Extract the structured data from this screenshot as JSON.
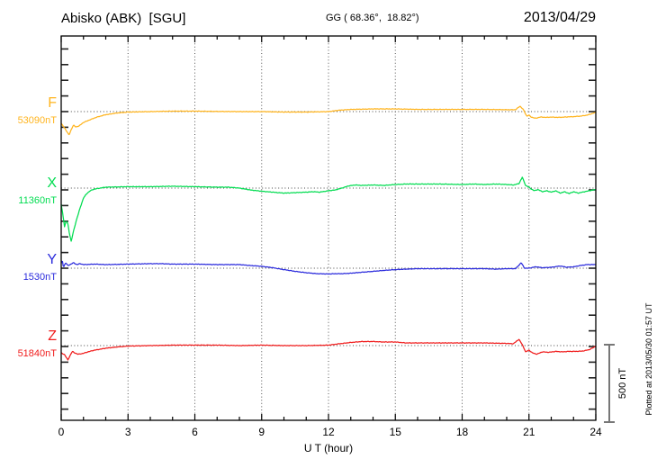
{
  "header": {
    "station_title": "Abisko (ABK)  [SGU]",
    "coords": "GG ( 68.36°,  18.82°)",
    "date": "2013/04/29"
  },
  "right_side": {
    "scale_bar_label": "500 nT",
    "plotted_at": "Plotted at 2013/05/30 01:57 UT"
  },
  "chart_data": {
    "type": "line",
    "title": "Abisko (ABK)  [SGU]",
    "xlabel": "U T (hour)",
    "x_range": [
      0,
      24
    ],
    "x_major_ticks": [
      0,
      3,
      6,
      9,
      12,
      15,
      18,
      21,
      24
    ],
    "x_minor_tick_step_hours": 1,
    "grid_hours": [
      3,
      6,
      9,
      12,
      15,
      18,
      21
    ],
    "grid_style": "dotted",
    "scale_bar_nT": 500,
    "y_minor_tick_nT": 100,
    "series": [
      {
        "name": "F",
        "baseline_label": "53090nT",
        "baseline_nT": 53090,
        "color": "#FFB41E",
        "points_hour_offset_nT": [
          [
            0,
            -75
          ],
          [
            0.2,
            -115
          ],
          [
            0.35,
            -150
          ],
          [
            0.45,
            -115
          ],
          [
            0.55,
            -86
          ],
          [
            0.65,
            -98
          ],
          [
            0.8,
            -92
          ],
          [
            1,
            -69
          ],
          [
            1.3,
            -52
          ],
          [
            1.6,
            -35
          ],
          [
            2,
            -20
          ],
          [
            2.5,
            -9
          ],
          [
            3,
            -3
          ],
          [
            4,
            0
          ],
          [
            5,
            3
          ],
          [
            6,
            3
          ],
          [
            7,
            1
          ],
          [
            8,
            0
          ],
          [
            9,
            0
          ],
          [
            10,
            -3
          ],
          [
            11,
            -3
          ],
          [
            12,
            0
          ],
          [
            12.5,
            9
          ],
          [
            13,
            14
          ],
          [
            14,
            17
          ],
          [
            15,
            17
          ],
          [
            16,
            14
          ],
          [
            17,
            14
          ],
          [
            18,
            14
          ],
          [
            19,
            14
          ],
          [
            20,
            12
          ],
          [
            20.4,
            12
          ],
          [
            20.6,
            35
          ],
          [
            20.75,
            12
          ],
          [
            20.9,
            -29
          ],
          [
            21,
            -23
          ],
          [
            21.1,
            -35
          ],
          [
            21.3,
            -43
          ],
          [
            21.5,
            -35
          ],
          [
            21.8,
            -37
          ],
          [
            22,
            -35
          ],
          [
            22.3,
            -37
          ],
          [
            22.6,
            -35
          ],
          [
            23,
            -32
          ],
          [
            23.3,
            -29
          ],
          [
            23.6,
            -23
          ],
          [
            23.8,
            -14
          ],
          [
            24,
            -6
          ]
        ]
      },
      {
        "name": "X",
        "baseline_label": "11360nT",
        "baseline_nT": 11360,
        "color": "#00DC50",
        "points_hour_offset_nT": [
          [
            0,
            -104
          ],
          [
            0.08,
            -173
          ],
          [
            0.15,
            -247
          ],
          [
            0.22,
            -207
          ],
          [
            0.3,
            -230
          ],
          [
            0.38,
            -299
          ],
          [
            0.45,
            -339
          ],
          [
            0.55,
            -276
          ],
          [
            0.7,
            -196
          ],
          [
            0.85,
            -127
          ],
          [
            1,
            -63
          ],
          [
            1.15,
            -35
          ],
          [
            1.3,
            -17
          ],
          [
            1.5,
            -6
          ],
          [
            2,
            6
          ],
          [
            3,
            9
          ],
          [
            4,
            9
          ],
          [
            5,
            12
          ],
          [
            6,
            9
          ],
          [
            7,
            6
          ],
          [
            7.5,
            6
          ],
          [
            8,
            0
          ],
          [
            8.5,
            -12
          ],
          [
            9,
            -20
          ],
          [
            9.5,
            -26
          ],
          [
            10,
            -32
          ],
          [
            10.5,
            -29
          ],
          [
            11,
            -26
          ],
          [
            11.3,
            -23
          ],
          [
            11.6,
            -26
          ],
          [
            12,
            -17
          ],
          [
            12.3,
            -12
          ],
          [
            12.6,
            0
          ],
          [
            12.9,
            14
          ],
          [
            13.2,
            20
          ],
          [
            13.5,
            17
          ],
          [
            14,
            20
          ],
          [
            14.5,
            17
          ],
          [
            15,
            23
          ],
          [
            15.5,
            26
          ],
          [
            16,
            26
          ],
          [
            17,
            26
          ],
          [
            18,
            23
          ],
          [
            18.5,
            26
          ],
          [
            19,
            23
          ],
          [
            19.5,
            26
          ],
          [
            20,
            23
          ],
          [
            20.3,
            20
          ],
          [
            20.55,
            29
          ],
          [
            20.7,
            69
          ],
          [
            20.85,
            17
          ],
          [
            21,
            6
          ],
          [
            21.1,
            -6
          ],
          [
            21.25,
            -17
          ],
          [
            21.4,
            -9
          ],
          [
            21.6,
            -23
          ],
          [
            21.8,
            -17
          ],
          [
            22,
            -26
          ],
          [
            22.2,
            -17
          ],
          [
            22.4,
            -32
          ],
          [
            22.6,
            -23
          ],
          [
            22.8,
            -35
          ],
          [
            23,
            -23
          ],
          [
            23.2,
            -32
          ],
          [
            23.5,
            -23
          ],
          [
            23.7,
            -17
          ],
          [
            24,
            -9
          ]
        ]
      },
      {
        "name": "Y",
        "baseline_label": "1530nT",
        "baseline_nT": 1530,
        "color": "#2A2ADC",
        "points_hour_offset_nT": [
          [
            0,
            29
          ],
          [
            0.05,
            52
          ],
          [
            0.1,
            6
          ],
          [
            0.2,
            35
          ],
          [
            0.3,
            17
          ],
          [
            0.4,
            23
          ],
          [
            0.55,
            35
          ],
          [
            0.7,
            23
          ],
          [
            0.85,
            29
          ],
          [
            1,
            23
          ],
          [
            1.5,
            26
          ],
          [
            2,
            23
          ],
          [
            3,
            26
          ],
          [
            4,
            29
          ],
          [
            4.5,
            29
          ],
          [
            5,
            26
          ],
          [
            6,
            26
          ],
          [
            7,
            23
          ],
          [
            8,
            23
          ],
          [
            8.5,
            17
          ],
          [
            9,
            12
          ],
          [
            9.5,
            3
          ],
          [
            10,
            -9
          ],
          [
            10.5,
            -20
          ],
          [
            11,
            -29
          ],
          [
            11.5,
            -35
          ],
          [
            12,
            -37
          ],
          [
            12.3,
            -35
          ],
          [
            12.6,
            -35
          ],
          [
            13,
            -32
          ],
          [
            13.5,
            -26
          ],
          [
            14,
            -20
          ],
          [
            14.5,
            -14
          ],
          [
            15,
            -9
          ],
          [
            15.5,
            -6
          ],
          [
            16,
            -3
          ],
          [
            17,
            -3
          ],
          [
            18,
            -3
          ],
          [
            19,
            -3
          ],
          [
            19.5,
            -6
          ],
          [
            20,
            -3
          ],
          [
            20.4,
            -3
          ],
          [
            20.65,
            35
          ],
          [
            20.8,
            0
          ],
          [
            21,
            0
          ],
          [
            21.3,
            9
          ],
          [
            21.6,
            3
          ],
          [
            22,
            6
          ],
          [
            22.4,
            14
          ],
          [
            22.7,
            6
          ],
          [
            23,
            9
          ],
          [
            23.3,
            17
          ],
          [
            23.6,
            23
          ],
          [
            24,
            23
          ]
        ]
      },
      {
        "name": "Z",
        "baseline_label": "51840nT",
        "baseline_nT": 51840,
        "color": "#F01C1C",
        "points_hour_offset_nT": [
          [
            0,
            -46
          ],
          [
            0.15,
            -58
          ],
          [
            0.3,
            -92
          ],
          [
            0.4,
            -63
          ],
          [
            0.5,
            -37
          ],
          [
            0.6,
            -46
          ],
          [
            0.75,
            -55
          ],
          [
            0.9,
            -52
          ],
          [
            1,
            -49
          ],
          [
            1.2,
            -40
          ],
          [
            1.5,
            -29
          ],
          [
            2,
            -17
          ],
          [
            2.5,
            -9
          ],
          [
            3,
            -3
          ],
          [
            4,
            0
          ],
          [
            5,
            3
          ],
          [
            6,
            3
          ],
          [
            7,
            3
          ],
          [
            8,
            0
          ],
          [
            9,
            3
          ],
          [
            10,
            0
          ],
          [
            11,
            0
          ],
          [
            12,
            3
          ],
          [
            12.5,
            12
          ],
          [
            13,
            20
          ],
          [
            13.5,
            26
          ],
          [
            14,
            26
          ],
          [
            14.5,
            23
          ],
          [
            15,
            23
          ],
          [
            15.5,
            17
          ],
          [
            16,
            17
          ],
          [
            17,
            17
          ],
          [
            18,
            17
          ],
          [
            19,
            17
          ],
          [
            20,
            14
          ],
          [
            20.3,
            12
          ],
          [
            20.55,
            40
          ],
          [
            20.7,
            6
          ],
          [
            20.85,
            -40
          ],
          [
            21,
            -29
          ],
          [
            21.15,
            -46
          ],
          [
            21.35,
            -55
          ],
          [
            21.6,
            -40
          ],
          [
            21.9,
            -43
          ],
          [
            22.2,
            -37
          ],
          [
            22.5,
            -40
          ],
          [
            22.8,
            -37
          ],
          [
            23.1,
            -37
          ],
          [
            23.4,
            -35
          ],
          [
            23.7,
            -26
          ],
          [
            23.9,
            -12
          ],
          [
            24,
            -3
          ]
        ]
      }
    ]
  }
}
